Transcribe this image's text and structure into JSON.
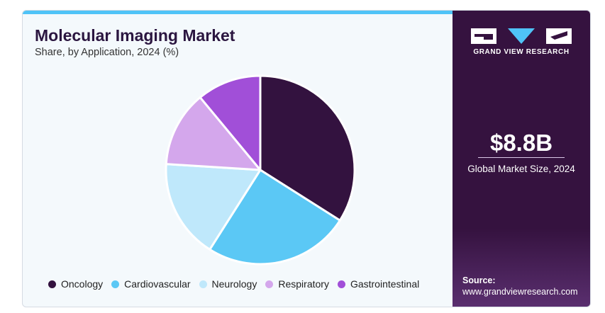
{
  "header": {
    "title": "Molecular Imaging Market",
    "subtitle": "Share, by Application, 2024 (%)"
  },
  "chart_data": {
    "type": "pie",
    "categories": [
      "Oncology",
      "Cardiovascular",
      "Neurology",
      "Respiratory",
      "Gastrointestinal"
    ],
    "values": [
      34,
      25,
      17,
      13,
      11
    ],
    "colors": [
      "#33123f",
      "#5bc8f5",
      "#bfe8fb",
      "#d4a7ec",
      "#a14fd8"
    ],
    "legend_position": "bottom",
    "start_angle_deg": 0
  },
  "side_panel": {
    "brand": "GRAND VIEW RESEARCH",
    "market_value": "$8.8B",
    "market_label": "Global Market Size, 2024",
    "source_label": "Source:",
    "source_url": "www.grandviewresearch.com"
  },
  "theme": {
    "accent": "#4fc3f7",
    "panel": "#35123f",
    "title": "#2b1640"
  }
}
